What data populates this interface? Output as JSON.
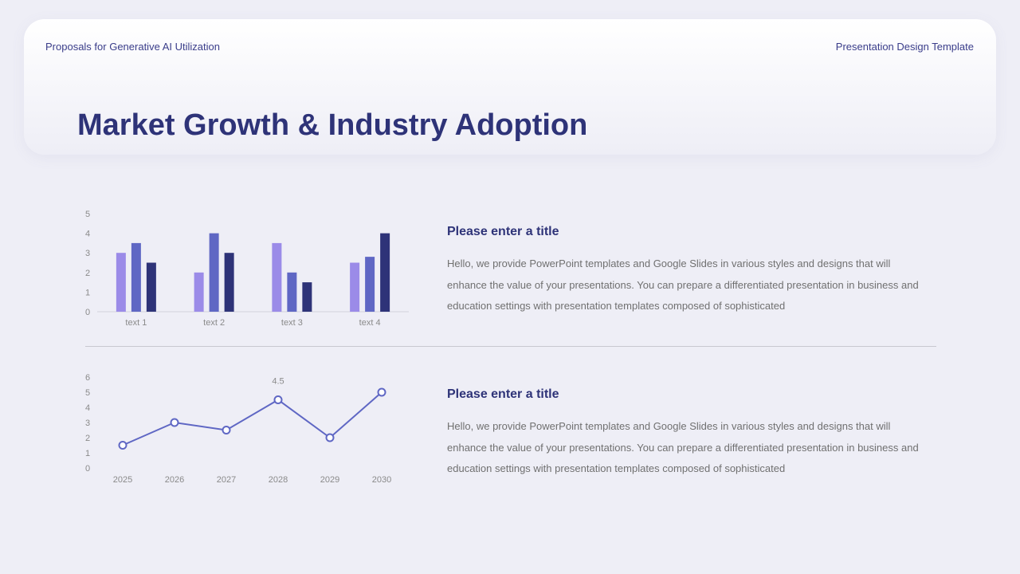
{
  "header": {
    "left": "Proposals for Generative AI Utilization",
    "right": "Presentation Design Template"
  },
  "page_title": "Market Growth & Industry Adoption",
  "sections": [
    {
      "title": "Please enter a title",
      "body": "Hello, we provide PowerPoint templates and Google Slides in various styles and designs that will enhance the value of your presentations. You can prepare a differentiated presentation in business and education settings with presentation templates composed of sophisticated"
    },
    {
      "title": "Please enter a title",
      "body": "Hello, we provide PowerPoint templates and Google Slides in various styles and designs that will enhance the value of your presentations. You can prepare a differentiated presentation in business and education settings with presentation templates composed of sophisticated"
    }
  ],
  "chart_data": [
    {
      "type": "bar",
      "categories": [
        "text 1",
        "text 2",
        "text 3",
        "text 4"
      ],
      "series": [
        {
          "values": [
            3,
            2,
            3.5,
            2.5
          ],
          "color": "#9b8be8"
        },
        {
          "values": [
            3.5,
            4,
            2,
            2.8
          ],
          "color": "#5f67c4"
        },
        {
          "values": [
            2.5,
            3,
            1.5,
            4
          ],
          "color": "#2e3378"
        }
      ],
      "yticks": [
        "0",
        "1",
        "2",
        "3",
        "4",
        "5"
      ],
      "ylim": [
        0,
        5
      ],
      "grid": false
    },
    {
      "type": "line",
      "categories": [
        "2025",
        "2026",
        "2027",
        "2028",
        "2029",
        "2030"
      ],
      "series": [
        {
          "values": [
            1.5,
            3,
            2.5,
            4.5,
            2,
            5
          ],
          "color": "#5f67c4"
        }
      ],
      "data_labels": [
        {
          "index": 3,
          "text": "4.5"
        }
      ],
      "yticks": [
        "0",
        "1",
        "2",
        "3",
        "4",
        "5",
        "6"
      ],
      "ylim": [
        0,
        6
      ],
      "grid": false
    }
  ]
}
